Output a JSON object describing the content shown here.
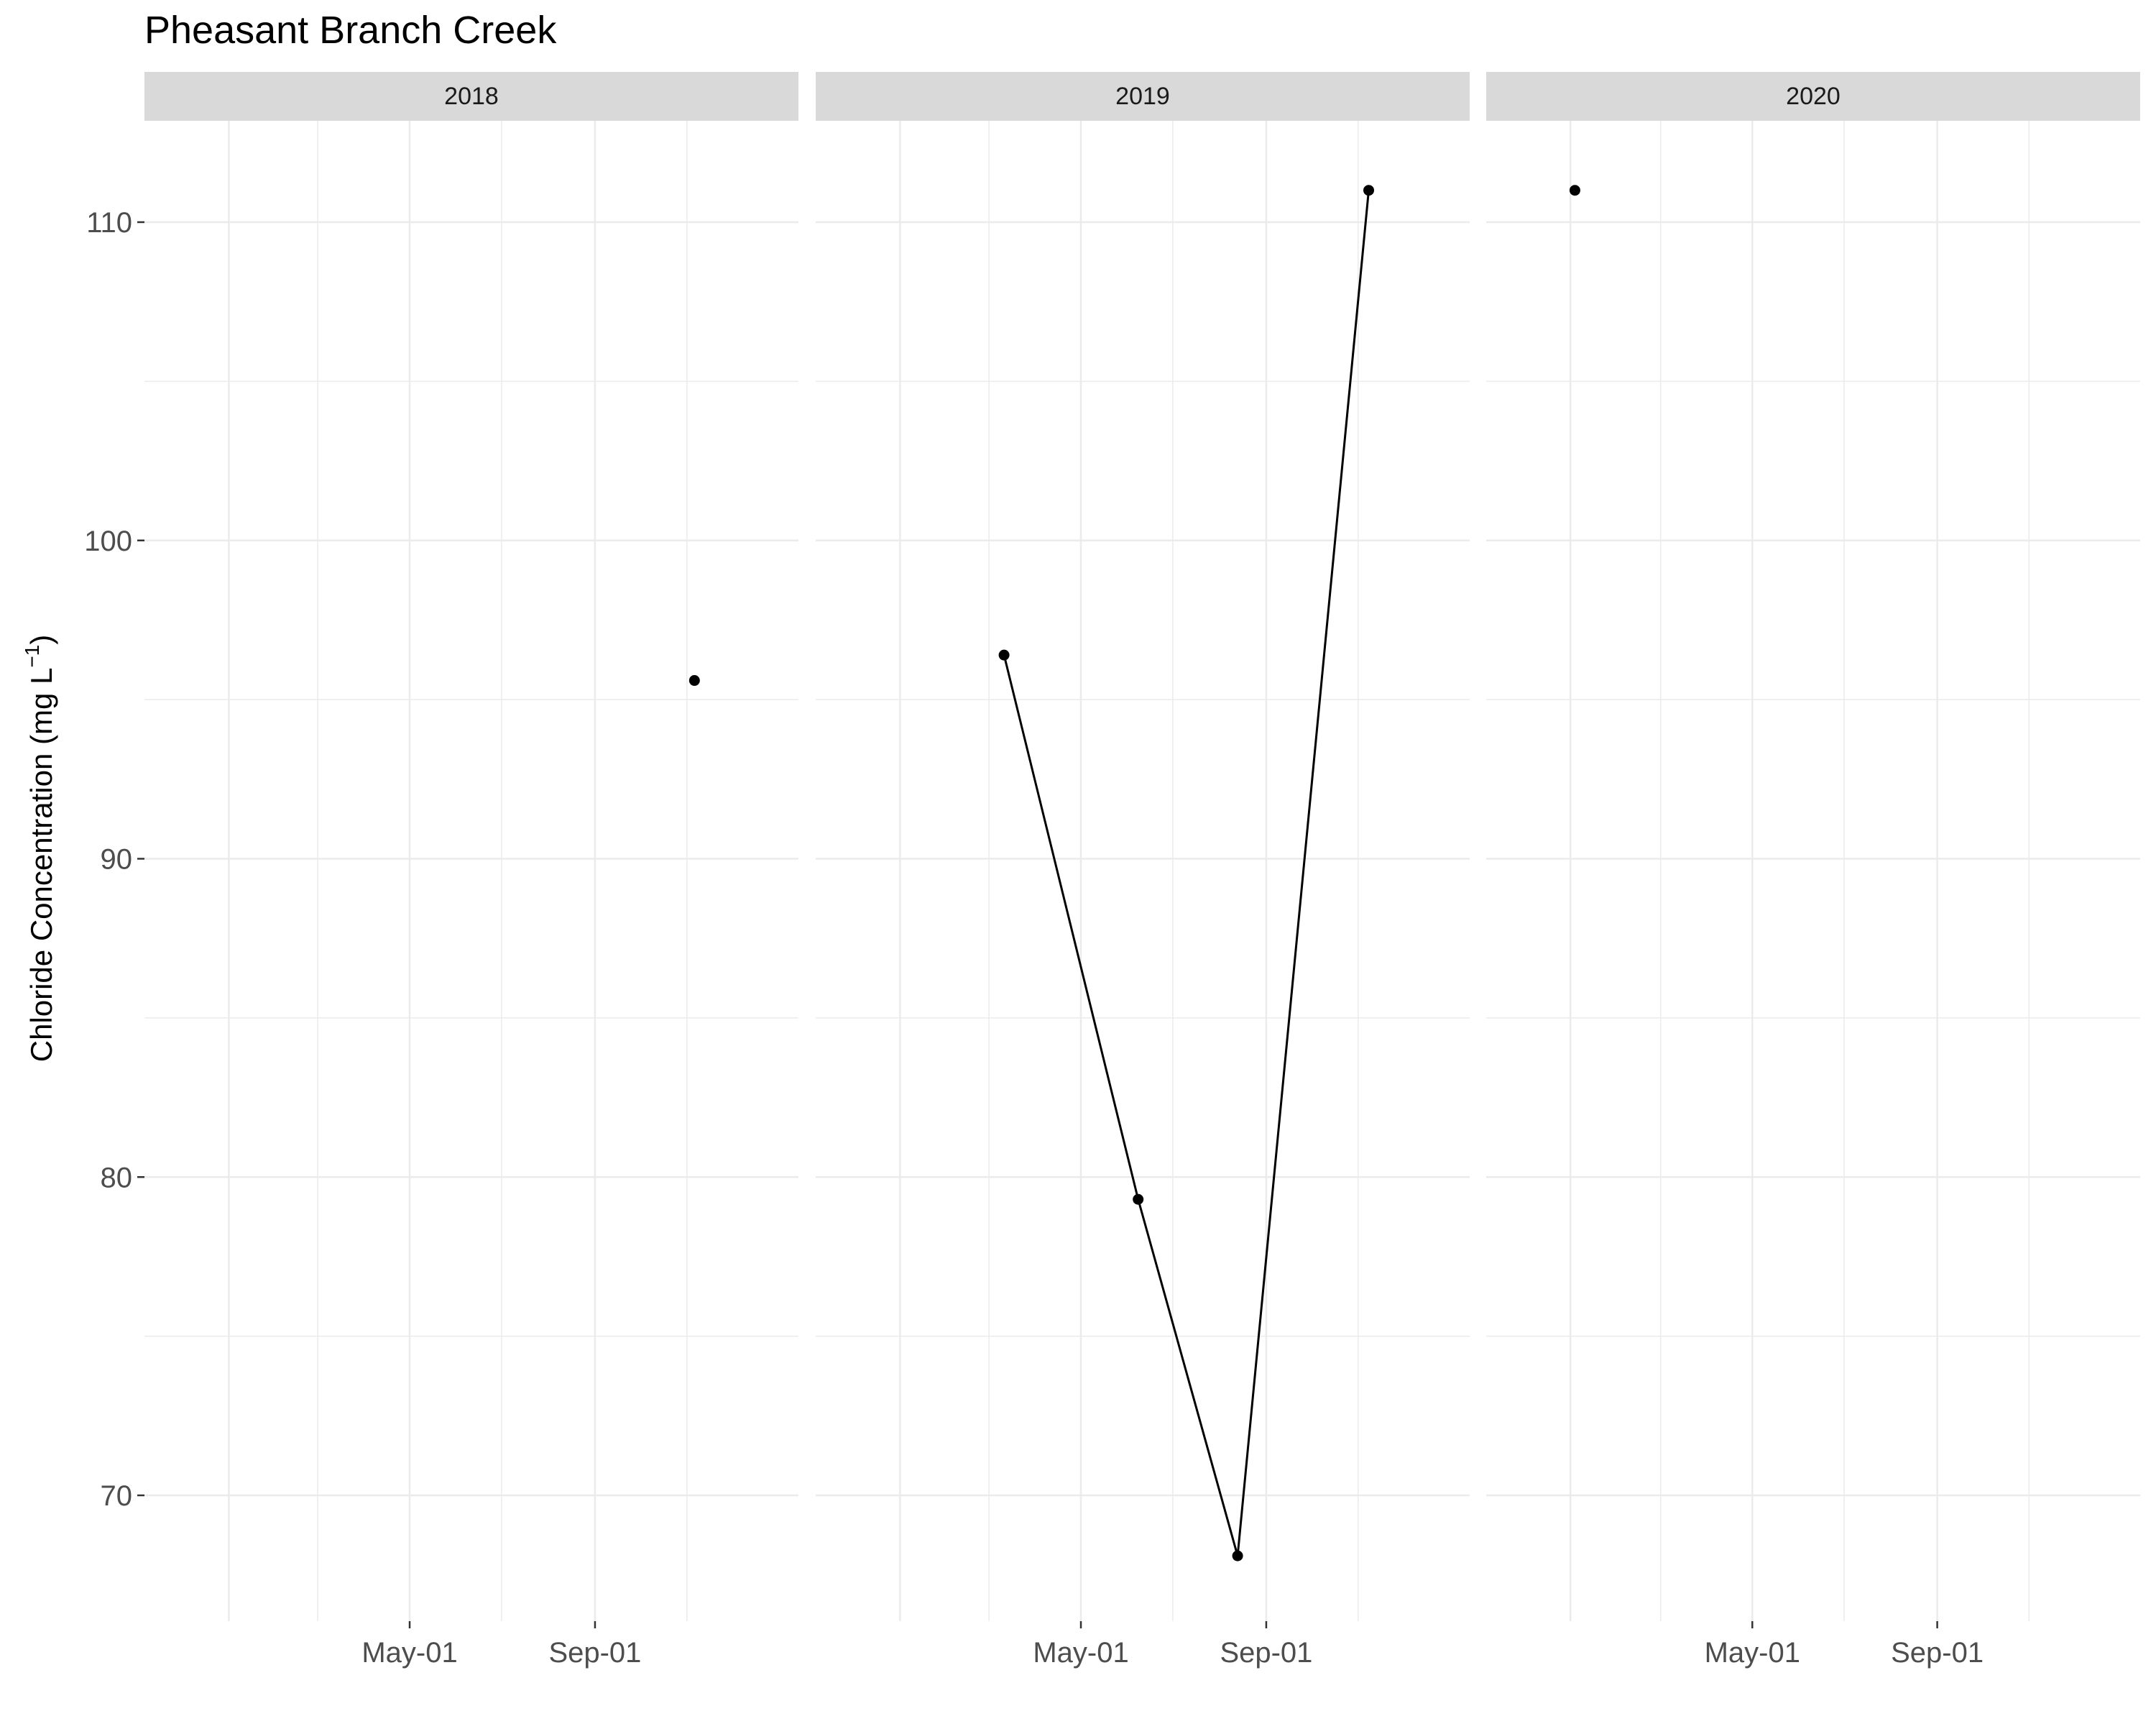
{
  "chart_data": {
    "type": "line",
    "title": "Pheasant Branch Creek",
    "ylabel": "Chloride Concentration (mg L",
    "ylabel_sup": "−1",
    "ylabel_close": ")",
    "xlabel": "",
    "ylim": [
      66,
      114
    ],
    "y_ticks": [
      70,
      80,
      90,
      100,
      110
    ],
    "x_tick_labels": [
      "May-01",
      "Sep-01"
    ],
    "grid": true,
    "panels": [
      {
        "label": "2018",
        "points": []
      },
      {
        "label": "2019",
        "points": []
      },
      {
        "label": "2020",
        "points": []
      }
    ],
    "series": [
      {
        "points": [
          {
            "date": "2018-11-06",
            "value": 95.6,
            "panel": "2018"
          },
          {
            "date": "2019-03-11",
            "value": 96.4,
            "panel": "2019"
          },
          {
            "date": "2019-06-08",
            "value": 79.3,
            "panel": "2019"
          },
          {
            "date": "2019-08-13",
            "value": 68.1,
            "panel": "2019"
          },
          {
            "date": "2019-11-08",
            "value": 111.0,
            "panel": "2019"
          },
          {
            "date": "2020-01-04",
            "value": 111.0,
            "panel": "2020"
          }
        ]
      }
    ],
    "colors": {
      "point": "#000000",
      "line": "#000000",
      "strip": "#d9d9d9",
      "grid": "#ebebeb",
      "axis_text": "#4d4d4d",
      "tick": "#333333"
    }
  }
}
